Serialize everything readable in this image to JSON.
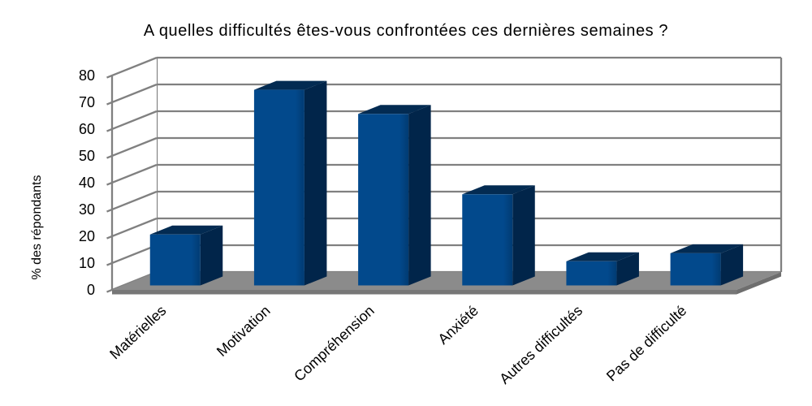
{
  "title": "A quelles difficultés êtes-vous confrontées ces dernières semaines ?",
  "chart_data": {
    "type": "bar",
    "style": "3d-column",
    "title": "A quelles difficultés êtes-vous confrontées ces dernières semaines ?",
    "categories": [
      "Matérielles",
      "Motivation",
      "Compréhension",
      "Anxiété",
      "Autres difficultés",
      "Pas de difficulté"
    ],
    "values": [
      19,
      73,
      64,
      34,
      9,
      12
    ],
    "xlabel": "",
    "ylabel": "% des répondants",
    "ylim": [
      0,
      80
    ],
    "ytick_step": 10,
    "ytick_labels": [
      "0",
      "10",
      "20",
      "30",
      "40",
      "50",
      "60",
      "70",
      "80"
    ],
    "grid": true,
    "legend_position": "none",
    "colors": {
      "bar_front": "#02498C",
      "bar_front_shade": "#013B72",
      "bar_top": "#032B52",
      "bar_side": "#01254A",
      "floor": "#8B8B8B",
      "floor_front": "#777777",
      "floor_side": "#6E6E6E",
      "wall": "#FFFFFF",
      "gridline": "#808080",
      "background": "#FFFFFF",
      "text": "#000000"
    }
  }
}
